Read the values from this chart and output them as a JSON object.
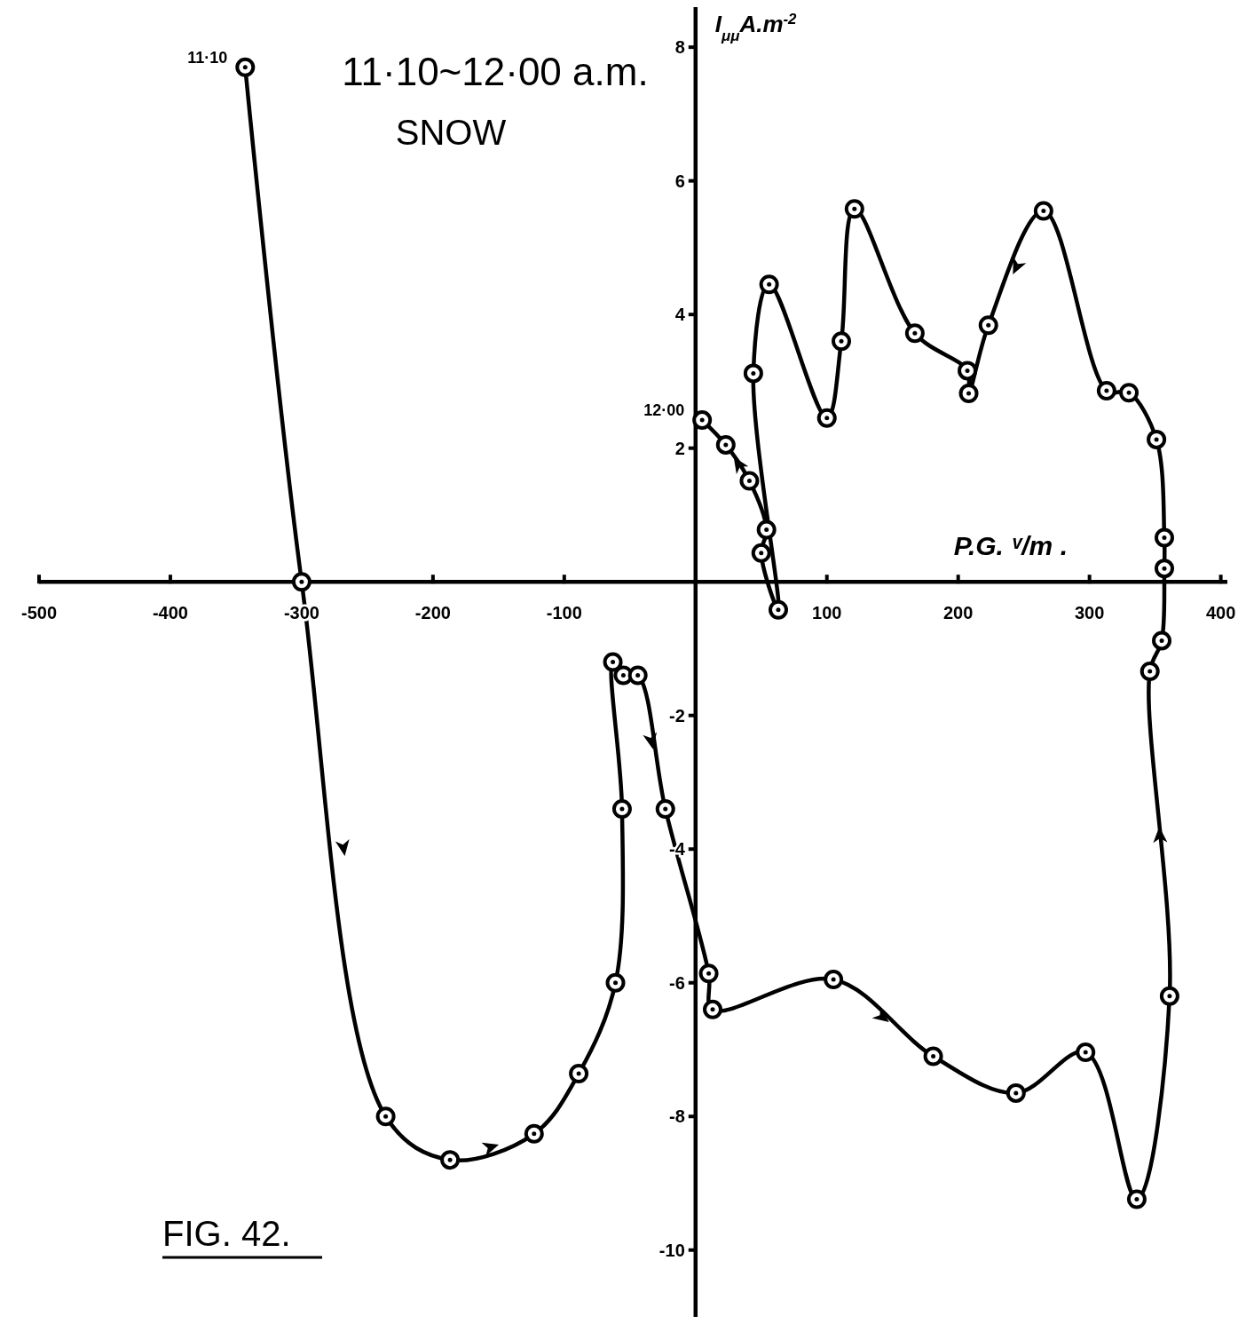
{
  "chart_data": {
    "type": "line",
    "title": "11·10~12·00 a.m.",
    "subtitle": "SNOW",
    "xlabel": "P.G. ᵛ/m .",
    "ylabel": "I$_{μμ}$A.m$^{-2}$",
    "x": [
      -343,
      -300,
      -236,
      -187,
      -123,
      -89,
      -61,
      -56,
      -63,
      -55,
      -44,
      -23,
      10,
      13,
      105,
      181,
      244,
      297,
      336,
      361,
      346,
      355,
      357,
      357,
      351,
      330,
      313,
      265,
      223,
      208,
      207,
      167,
      121,
      111,
      100,
      56,
      44,
      63,
      50,
      54,
      41,
      23,
      5
    ],
    "series": [
      {
        "color": "#000000",
        "values": [
          7.7,
          0,
          -8.0,
          -8.65,
          -8.26,
          -7.36,
          -6.0,
          -3.4,
          -1.2,
          -1.4,
          -1.4,
          -3.4,
          -5.86,
          -6.4,
          -5.95,
          -7.1,
          -7.65,
          -7.04,
          -9.24,
          -6.2,
          -1.34,
          -0.88,
          0.2,
          0.66,
          2.13,
          2.83,
          2.86,
          5.55,
          3.84,
          2.82,
          3.16,
          3.72,
          5.58,
          3.6,
          2.45,
          4.45,
          3.12,
          -0.42,
          0.43,
          0.78,
          1.51,
          2.05,
          2.42
        ]
      }
    ],
    "xlim": [
      -500,
      405
    ],
    "ylim": [
      -11,
      8.6
    ],
    "xticks": [
      -500,
      -400,
      -300,
      -200,
      -100,
      100,
      200,
      300,
      400
    ],
    "yticks": [
      8,
      6,
      4,
      2,
      -2,
      -4,
      -6,
      -8,
      -10
    ],
    "marker": "circle",
    "line_style": "solid",
    "annotations": [
      {
        "text": "11·10",
        "x": -343,
        "y": 7.7
      },
      {
        "text": "12·00",
        "x": 5,
        "y": 2.42
      },
      "FIG. 42."
    ]
  }
}
